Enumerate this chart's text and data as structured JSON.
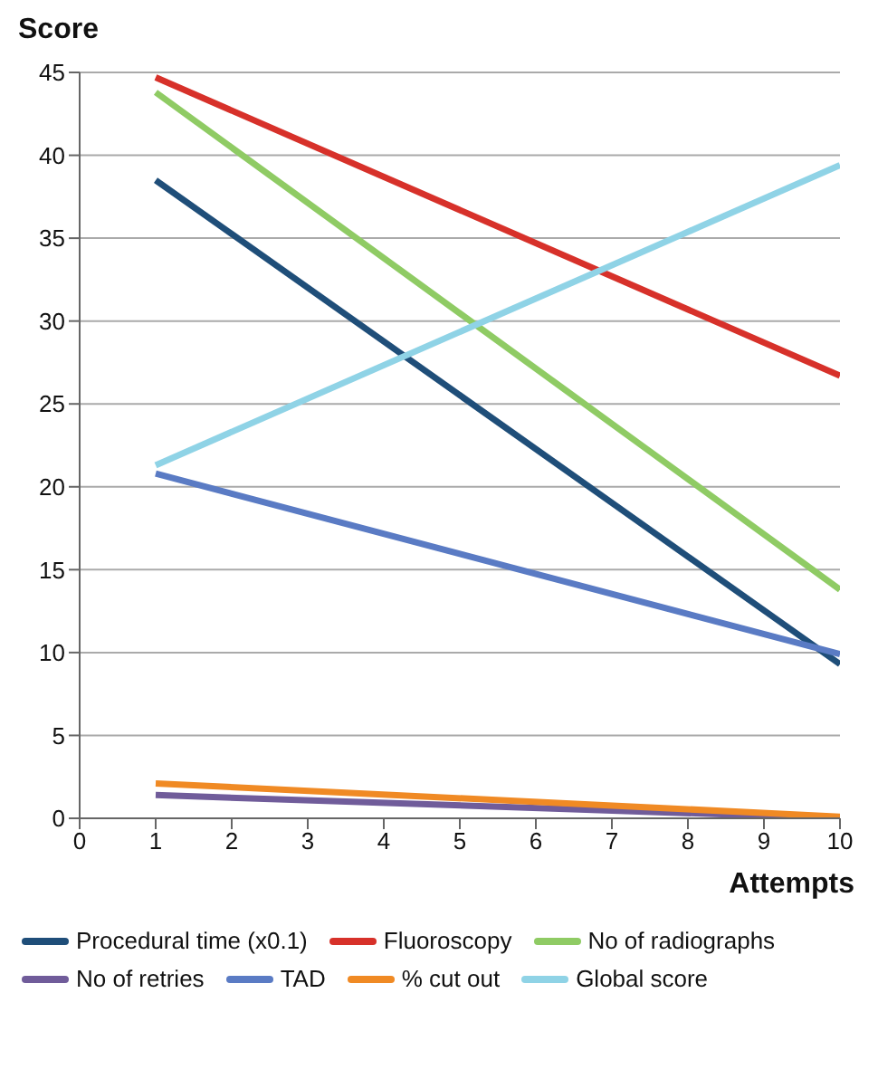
{
  "chart_data": {
    "type": "line",
    "xlabel": "Attempts",
    "ylabel": "Score",
    "x": [
      1,
      10
    ],
    "series": [
      {
        "name": "Procedural time (x0.1)",
        "color": "#1f4e79",
        "values": [
          38.5,
          9.3
        ]
      },
      {
        "name": "Fluoroscopy",
        "color": "#d7312a",
        "values": [
          44.7,
          26.7
        ]
      },
      {
        "name": "No of radiographs",
        "color": "#8fcb64",
        "values": [
          43.8,
          13.8
        ]
      },
      {
        "name": "No of retries",
        "color": "#705c9a",
        "values": [
          1.4,
          0
        ]
      },
      {
        "name": "TAD",
        "color": "#5a7bc4",
        "values": [
          20.8,
          9.9
        ]
      },
      {
        "name": "% cut out",
        "color": "#f08a24",
        "values": [
          2.1,
          0.1
        ]
      },
      {
        "name": "Global score",
        "color": "#8fd3e6",
        "values": [
          21.3,
          39.4
        ]
      }
    ],
    "xlim": [
      0,
      10
    ],
    "xticks": [
      0,
      1,
      2,
      3,
      4,
      5,
      6,
      7,
      8,
      9,
      10
    ],
    "ylim": [
      0,
      45
    ],
    "yticks": [
      0,
      5,
      10,
      15,
      20,
      25,
      30,
      35,
      40,
      45
    ],
    "grid": "y",
    "legend": "bottom",
    "marker": "none",
    "line_style": "solid"
  }
}
